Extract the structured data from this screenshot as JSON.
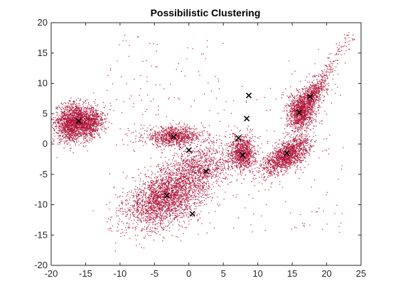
{
  "chart_data": {
    "type": "scatter",
    "title": "Possibilistic Clustering",
    "xlabel": "",
    "ylabel": "",
    "xlim": [
      -20,
      25
    ],
    "ylim": [
      -20,
      20
    ],
    "x_ticks": [
      -20,
      -15,
      -10,
      -5,
      0,
      5,
      10,
      15,
      20,
      25
    ],
    "y_ticks": [
      -20,
      -15,
      -10,
      -5,
      0,
      5,
      10,
      15,
      20
    ],
    "grid": false,
    "point_color": "#b0163a",
    "center_color": "#000000",
    "series": [
      {
        "marker": "dot",
        "clusters": [
          {
            "cx": -17.0,
            "cy": 3.6,
            "sx": 1.1,
            "sy": 1.6,
            "rot": -15,
            "n": 1400
          },
          {
            "cx": -14.5,
            "cy": 3.4,
            "sx": 1.0,
            "sy": 1.4,
            "rot": -30,
            "n": 900
          },
          {
            "cx": -2.2,
            "cy": 1.2,
            "sx": 2.2,
            "sy": 0.8,
            "rot": 0,
            "n": 900
          },
          {
            "cx": -3.5,
            "cy": -9.0,
            "sx": 3.0,
            "sy": 2.0,
            "rot": 35,
            "n": 2300
          },
          {
            "cx": 1.5,
            "cy": -4.0,
            "sx": 2.6,
            "sy": 1.8,
            "rot": 25,
            "n": 900
          },
          {
            "cx": 7.8,
            "cy": -1.5,
            "sx": 0.9,
            "sy": 1.4,
            "rot": 0,
            "n": 900
          },
          {
            "cx": 14.2,
            "cy": -2.0,
            "sx": 1.0,
            "sy": 2.0,
            "rot": -50,
            "n": 1400
          },
          {
            "cx": 16.2,
            "cy": 5.3,
            "sx": 0.9,
            "sy": 1.6,
            "rot": 0,
            "n": 900
          },
          {
            "cx": 17.8,
            "cy": 7.5,
            "sx": 0.7,
            "sy": 2.4,
            "rot": -28,
            "n": 700
          }
        ],
        "scatter_noise": {
          "xmin": -12,
          "xmax": 23,
          "ymin": -15,
          "ymax": 18,
          "n": 400
        }
      },
      {
        "marker": "x",
        "points": [
          {
            "x": -16.0,
            "y": 3.8
          },
          {
            "x": -2.2,
            "y": 1.2
          },
          {
            "x": 0.0,
            "y": -1.0
          },
          {
            "x": -3.2,
            "y": -8.5
          },
          {
            "x": 2.5,
            "y": -4.5
          },
          {
            "x": 0.5,
            "y": -11.5
          },
          {
            "x": 7.8,
            "y": -1.8
          },
          {
            "x": 7.2,
            "y": 1.0
          },
          {
            "x": 8.4,
            "y": 4.2
          },
          {
            "x": 8.7,
            "y": 8.0
          },
          {
            "x": 14.2,
            "y": -1.5
          },
          {
            "x": 16.0,
            "y": 5.2
          },
          {
            "x": 17.6,
            "y": 7.8
          }
        ]
      }
    ]
  }
}
